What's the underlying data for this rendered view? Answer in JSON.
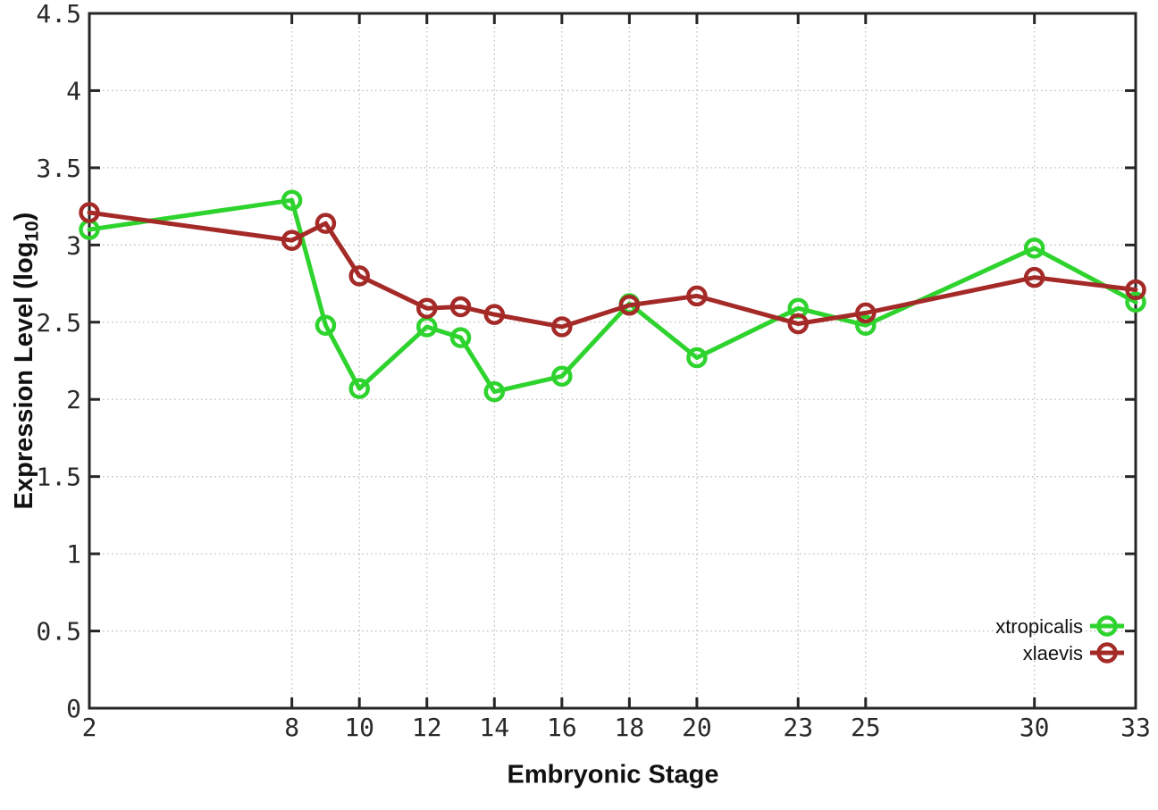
{
  "chart_data": {
    "type": "line",
    "title": "",
    "xlabel": "Embryonic Stage",
    "ylabel": "Expression Level (log10)",
    "xlim": [
      2,
      33
    ],
    "ylim": [
      0,
      4.5
    ],
    "grid": true,
    "marker": "open-circle",
    "legend_position": "inside-right-bottom",
    "x": [
      2,
      8,
      9,
      10,
      12,
      13,
      14,
      16,
      18,
      20,
      23,
      25,
      30,
      33
    ],
    "series": [
      {
        "name": "xtropicalis",
        "color": "#2ed32e",
        "values": [
          3.1,
          3.29,
          2.48,
          2.07,
          2.47,
          2.4,
          2.05,
          2.15,
          2.62,
          2.27,
          2.59,
          2.48,
          2.98,
          2.63
        ]
      },
      {
        "name": "xlaevis",
        "color": "#a42a28",
        "values": [
          3.21,
          3.03,
          3.14,
          2.8,
          2.59,
          2.6,
          2.55,
          2.47,
          2.61,
          2.67,
          2.49,
          2.56,
          2.79,
          2.71
        ]
      }
    ],
    "x_ticks": [
      2,
      8,
      10,
      12,
      14,
      16,
      18,
      20,
      23,
      25,
      30,
      33
    ],
    "y_ticks": [
      0,
      0.5,
      1,
      1.5,
      2,
      2.5,
      3,
      3.5,
      4,
      4.5
    ]
  },
  "axis_titles": {
    "y_pre": "Expression Level (log",
    "y_sub": "10",
    "y_post": ")",
    "x": "Embryonic Stage"
  },
  "colors": {
    "background": "#ffffff",
    "grid": "#bdbdbd",
    "axis": "#262626",
    "tick_text": "#2a2a2a",
    "title_text": "#111111"
  }
}
